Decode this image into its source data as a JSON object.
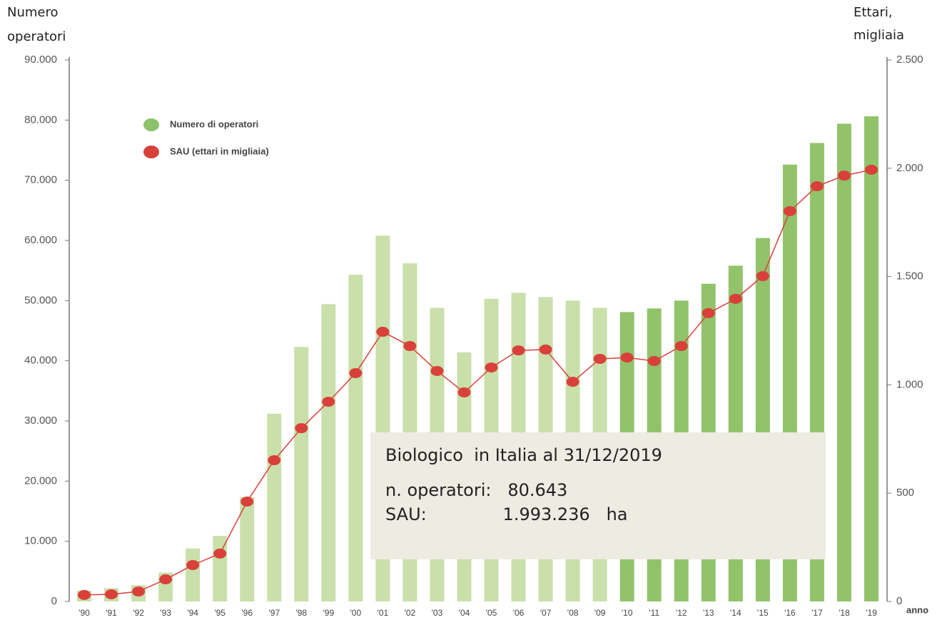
{
  "chart_data": {
    "type": "bar_line",
    "y_label": [
      "Numero",
      "operatori"
    ],
    "y2_label": [
      "Ettari,",
      "migliaia"
    ],
    "x_label": "anno",
    "categories": [
      "'90",
      "'91",
      "'92",
      "'93",
      "'94",
      "'95",
      "'96",
      "'97",
      "'98",
      "'99",
      "'00",
      "'01",
      "'02",
      "'03",
      "'04",
      "'05",
      "'06",
      "'07",
      "'08",
      "'09",
      "'10",
      "'11",
      "'12",
      "'13",
      "'14",
      "'15",
      "'16",
      "'17",
      "'18",
      "'19"
    ],
    "series": [
      {
        "name": "Numero di operatori",
        "type": "bar",
        "color": "#8dc26a",
        "colors": [
          "#c9e0ab",
          "#c9e0ab",
          "#c9e0ab",
          "#c9e0ab",
          "#c9e0ab",
          "#c9e0ab",
          "#c9e0ab",
          "#c9e0ab",
          "#c9e0ab",
          "#c9e0ab",
          "#c9e0ab",
          "#c9e0ab",
          "#c9e0ab",
          "#c9e0ab",
          "#c9e0ab",
          "#c9e0ab",
          "#c9e0ab",
          "#c9e0ab",
          "#c9e0ab",
          "#c9e0ab",
          "#92c36b",
          "#92c36b",
          "#92c36b",
          "#92c36b",
          "#92c36b",
          "#92c36b",
          "#92c36b",
          "#92c36b",
          "#92c36b",
          "#92c36b"
        ],
        "values": [
          1800,
          2200,
          2700,
          4800,
          8800,
          10900,
          17300,
          31200,
          42300,
          49400,
          54300,
          60800,
          56200,
          48800,
          41400,
          50300,
          51300,
          50600,
          50000,
          48800,
          48100,
          48700,
          50000,
          52800,
          55800,
          60400,
          72600,
          76200,
          79400,
          80643
        ]
      },
      {
        "name": "SAU (ettari in migliaia)",
        "type": "line",
        "axis": "y2",
        "color": "#d9403a",
        "values": [
          30,
          33,
          46,
          102,
          168,
          221,
          461,
          652,
          800,
          922,
          1054,
          1245,
          1179,
          1064,
          965,
          1080,
          1159,
          1163,
          1014,
          1120,
          1126,
          1110,
          1179,
          1331,
          1397,
          1502,
          1802,
          1917,
          1966,
          1993
        ]
      }
    ],
    "ylim": [
      0,
      90000
    ],
    "yticks": [
      0,
      {
        "value": 10000,
        "label": "10.000"
      },
      {
        "value": 20000,
        "label": "20.000"
      },
      {
        "value": 30000,
        "label": "30.000"
      },
      {
        "value": 40000,
        "label": "40.000"
      },
      {
        "value": 50000,
        "label": "50.000"
      },
      {
        "value": 60000,
        "label": "60.000"
      },
      {
        "value": 70000,
        "label": "70.000"
      },
      {
        "value": 80000,
        "label": "80.000"
      },
      {
        "value": 90000,
        "label": "90.000"
      }
    ],
    "y2lim": [
      0,
      2500
    ],
    "y2ticks": [
      0,
      500,
      {
        "value": 1000,
        "label": "1.000"
      },
      {
        "value": 1500,
        "label": "1.500"
      },
      {
        "value": 2000,
        "label": "2.000"
      },
      {
        "value": 2500,
        "label": "2.500"
      }
    ],
    "annotation": [
      "Biologico  in Italia al 31/12/2019",
      "n. operatori:   80.643",
      "SAU:              1.993.236   ha"
    ]
  }
}
